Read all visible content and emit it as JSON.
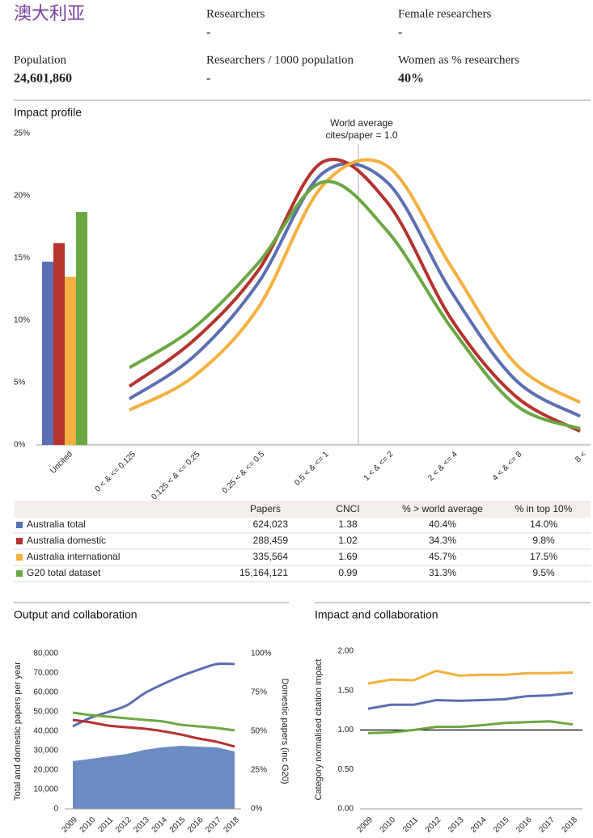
{
  "header": {
    "title": "澳大利亚",
    "fields": [
      {
        "label": "Researchers",
        "value": "-"
      },
      {
        "label": "Female researchers",
        "value": "-"
      },
      {
        "label": "Population",
        "value": "24,601,860"
      },
      {
        "label": "Researchers / 1000 population",
        "value": "-"
      },
      {
        "label": "Women as % researchers",
        "value": "40%"
      }
    ]
  },
  "chart_data": [
    {
      "type": "profile",
      "title": "Impact profile",
      "annotation": [
        "World average",
        "cites/paper = 1.0"
      ],
      "bar_categories": [
        "Uncited"
      ],
      "categories": [
        "0 < & <= 0.125",
        "0.125 < & <= 0.25",
        "0.25 < & <= 0.5",
        "0.5 < & <= 1",
        "1 < & <= 2",
        "2 < & <= 4",
        "4 < & <= 8",
        "8 <"
      ],
      "ylim": [
        0,
        25
      ],
      "yticks": [
        {
          "value": 0,
          "label": "0%"
        },
        {
          "value": 5,
          "label": "5%"
        },
        {
          "value": 10,
          "label": "10%"
        },
        {
          "value": 15,
          "label": "15%"
        },
        {
          "value": 20,
          "label": "20%"
        },
        {
          "value": 25,
          "label": "25%"
        }
      ],
      "series": [
        {
          "color": "#5a6fb3",
          "bar_values": [
            14.7
          ],
          "values": [
            3.7,
            7.1,
            13.0,
            21.8,
            21.1,
            12.3,
            5.2,
            2.3
          ]
        },
        {
          "color": "#b5322e",
          "bar_values": [
            16.2
          ],
          "values": [
            4.7,
            8.4,
            14.0,
            22.7,
            19.5,
            10.1,
            3.9,
            1.1
          ]
        },
        {
          "color": "#f4b03e",
          "bar_values": [
            13.5
          ],
          "values": [
            2.8,
            5.5,
            11.0,
            20.8,
            22.4,
            14.3,
            6.5,
            3.4
          ]
        },
        {
          "color": "#6aa842",
          "bar_values": [
            18.7
          ],
          "values": [
            6.2,
            9.4,
            14.6,
            21.1,
            17.2,
            9.4,
            3.2,
            1.3
          ]
        }
      ]
    },
    {
      "type": "combo",
      "title": "Output and collaboration",
      "ylabel": "Total and domestic papers per year",
      "y2label": "Domestic papers (inc G20)",
      "x": [
        "2009",
        "2010",
        "2011",
        "2012",
        "2013",
        "2014",
        "2015",
        "2016",
        "2017",
        "2018"
      ],
      "ylim": [
        0,
        80000
      ],
      "yticks": [
        0,
        {
          "value": 10000,
          "label": "10,000"
        },
        {
          "value": 20000,
          "label": "20,000"
        },
        {
          "value": 30000,
          "label": "30,000"
        },
        {
          "value": 40000,
          "label": "40,000"
        },
        {
          "value": 50000,
          "label": "50,000"
        },
        {
          "value": 60000,
          "label": "60,000"
        },
        {
          "value": 70000,
          "label": "70,000"
        },
        {
          "value": 80000,
          "label": "80,000"
        }
      ],
      "y2lim": [
        0,
        100
      ],
      "y2ticks": [
        {
          "value": 0,
          "label": "0%"
        },
        {
          "value": 25,
          "label": "25%"
        },
        {
          "value": 50,
          "label": "50%"
        },
        {
          "value": 75,
          "label": "75%"
        },
        {
          "value": 100,
          "label": "100%"
        }
      ],
      "series": [
        {
          "kind": "area",
          "color": "#6b8cc2",
          "values": [
            24600,
            25800,
            27100,
            28300,
            30400,
            31700,
            32500,
            32100,
            31700,
            29600
          ]
        },
        {
          "kind": "line",
          "color": "#5a6fb3",
          "values": [
            42500,
            47000,
            50000,
            53300,
            59600,
            64200,
            68300,
            71700,
            74600,
            74600
          ]
        },
        {
          "kind": "line",
          "axis": "y2",
          "color": "#b5322e",
          "values": [
            57.3,
            55.7,
            53.6,
            52.6,
            51.6,
            50.0,
            47.9,
            45.3,
            43.2,
            40.1
          ]
        },
        {
          "kind": "line",
          "axis": "y2",
          "color": "#6aa842",
          "values": [
            62.0,
            60.4,
            59.4,
            58.3,
            57.3,
            56.3,
            54.2,
            53.1,
            52.1,
            50.5
          ]
        }
      ]
    },
    {
      "type": "line",
      "title": "Impact and collaboration",
      "ylabel": "Category normalised citation impact",
      "x": [
        "2009",
        "2010",
        "2011",
        "2012",
        "2013",
        "2014",
        "2015",
        "2016",
        "2017",
        "2018"
      ],
      "ylim": [
        0,
        2
      ],
      "yticks": [
        {
          "value": 0,
          "label": "0.00"
        },
        {
          "value": 0.5,
          "label": "0.50"
        },
        {
          "value": 1,
          "label": "1.00"
        },
        {
          "value": 1.5,
          "label": "1.50"
        },
        {
          "value": 2,
          "label": "2.00"
        }
      ],
      "hline": 1,
      "series": [
        {
          "color": "#f4b03e",
          "values": [
            1.59,
            1.64,
            1.63,
            1.75,
            1.69,
            1.7,
            1.7,
            1.72,
            1.72,
            1.73
          ]
        },
        {
          "color": "#5a6fb3",
          "values": [
            1.27,
            1.32,
            1.32,
            1.38,
            1.37,
            1.38,
            1.39,
            1.43,
            1.44,
            1.47
          ]
        },
        {
          "color": "#6aa842",
          "values": [
            0.96,
            0.97,
            1.0,
            1.04,
            1.04,
            1.06,
            1.09,
            1.1,
            1.11,
            1.07
          ]
        }
      ]
    }
  ],
  "table": {
    "columns": [
      "Papers",
      "CNCI",
      "% > world average",
      "% in top 10%"
    ],
    "rows": [
      {
        "name": "Australia total",
        "color": "#5a6fb3",
        "cells": [
          "624,023",
          "1.38",
          "40.4%",
          "14.0%"
        ]
      },
      {
        "name": "Australia domestic",
        "color": "#b5322e",
        "cells": [
          "288,459",
          "1.02",
          "34.3%",
          "9.8%"
        ]
      },
      {
        "name": "Australia international",
        "color": "#f4b03e",
        "cells": [
          "335,564",
          "1.69",
          "45.7%",
          "17.5%"
        ]
      },
      {
        "name": "G20 total dataset",
        "color": "#6aa842",
        "cells": [
          "15,164,121",
          "0.99",
          "31.3%",
          "9.5%"
        ]
      }
    ]
  }
}
